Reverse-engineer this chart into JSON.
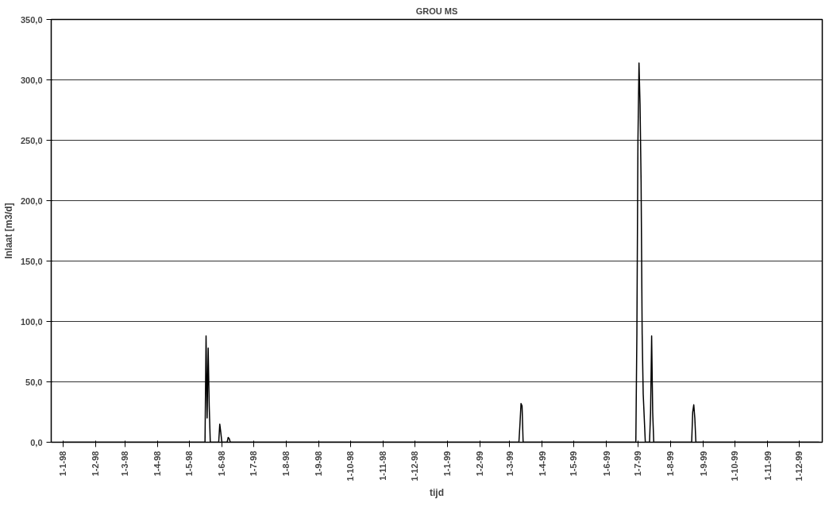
{
  "chart_data": {
    "type": "line",
    "title": "GROU MS",
    "xlabel": "tijd",
    "ylabel": "Inlaat [m3/d]",
    "x": [
      "1998-01-01",
      "1998-05-15",
      "1998-05-16",
      "1998-05-17",
      "1998-05-18",
      "1998-05-19",
      "1998-05-20",
      "1998-05-21",
      "1998-05-29",
      "1998-05-30",
      "1998-05-31",
      "1998-06-01",
      "1998-06-06",
      "1998-06-07",
      "1998-06-08",
      "1998-06-09",
      "1999-03-10",
      "1999-03-11",
      "1999-03-12",
      "1999-03-13",
      "1999-03-14",
      "1999-06-29",
      "1999-06-30",
      "1999-07-01",
      "1999-07-02",
      "1999-07-03",
      "1999-07-04",
      "1999-07-05",
      "1999-07-06",
      "1999-07-08",
      "1999-07-12",
      "1999-07-13",
      "1999-07-14",
      "1999-07-15",
      "1999-07-16",
      "1999-08-21",
      "1999-08-22",
      "1999-08-23",
      "1999-08-24",
      "1999-08-25",
      "1999-12-20"
    ],
    "series": [
      {
        "color": "#000000",
        "values": [
          0,
          0,
          0,
          88,
          20,
          78,
          30,
          0,
          0,
          15,
          8,
          0,
          0,
          4,
          3,
          0,
          0,
          15,
          32,
          30,
          0,
          0,
          90,
          250,
          314,
          280,
          215,
          90,
          40,
          0,
          0,
          25,
          88,
          25,
          0,
          0,
          25,
          31,
          20,
          0,
          0
        ]
      }
    ],
    "xlim": [
      "1997-12-21",
      "1999-12-23"
    ],
    "xticks": [
      {
        "value": "1998-01-01",
        "label": "1-1-98"
      },
      {
        "value": "1998-02-01",
        "label": "1-2-98"
      },
      {
        "value": "1998-03-01",
        "label": "1-3-98"
      },
      {
        "value": "1998-04-01",
        "label": "1-4-98"
      },
      {
        "value": "1998-05-01",
        "label": "1-5-98"
      },
      {
        "value": "1998-06-01",
        "label": "1-6-98"
      },
      {
        "value": "1998-07-01",
        "label": "1-7-98"
      },
      {
        "value": "1998-08-01",
        "label": "1-8-98"
      },
      {
        "value": "1998-09-01",
        "label": "1-9-98"
      },
      {
        "value": "1998-10-01",
        "label": "1-10-98"
      },
      {
        "value": "1998-11-01",
        "label": "1-11-98"
      },
      {
        "value": "1998-12-01",
        "label": "1-12-98"
      },
      {
        "value": "1999-01-01",
        "label": "1-1-99"
      },
      {
        "value": "1999-02-01",
        "label": "1-2-99"
      },
      {
        "value": "1999-03-01",
        "label": "1-3-99"
      },
      {
        "value": "1999-04-01",
        "label": "1-4-99"
      },
      {
        "value": "1999-05-01",
        "label": "1-5-99"
      },
      {
        "value": "1999-06-01",
        "label": "1-6-99"
      },
      {
        "value": "1999-07-01",
        "label": "1-7-99"
      },
      {
        "value": "1999-08-01",
        "label": "1-8-99"
      },
      {
        "value": "1999-09-01",
        "label": "1-9-99"
      },
      {
        "value": "1999-10-01",
        "label": "1-10-99"
      },
      {
        "value": "1999-11-01",
        "label": "1-11-99"
      },
      {
        "value": "1999-12-01",
        "label": "1-12-99"
      }
    ],
    "ylim": [
      0,
      350
    ],
    "yticks": [
      {
        "value": 0,
        "label": "0,0"
      },
      {
        "value": 50,
        "label": "50,0"
      },
      {
        "value": 100,
        "label": "100,0"
      },
      {
        "value": 150,
        "label": "150,0"
      },
      {
        "value": 200,
        "label": "200,0"
      },
      {
        "value": 250,
        "label": "250,0"
      },
      {
        "value": 300,
        "label": "300,0"
      },
      {
        "value": 350,
        "label": "350,0"
      }
    ],
    "grid": "y",
    "marker": "none",
    "line_style": "solid"
  }
}
